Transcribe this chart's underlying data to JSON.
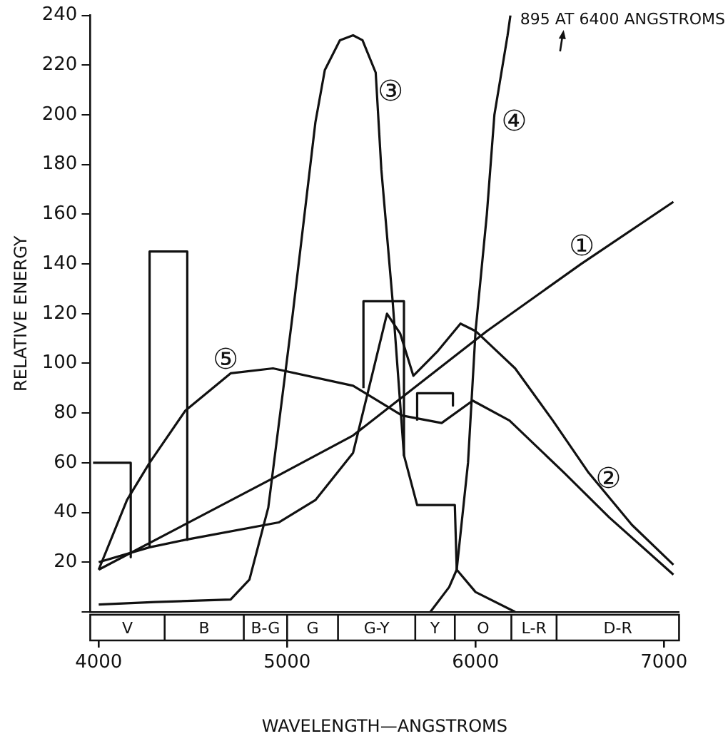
{
  "chart_data": {
    "type": "line",
    "xlabel": "WAVELENGTH—ANGSTROMS",
    "ylabel": "RELATIVE ENERGY",
    "xlim": [
      3955,
      7080
    ],
    "xticks": [
      4000,
      5000,
      6000,
      7000
    ],
    "ylim": [
      0,
      240
    ],
    "yticks": [
      {
        "value": 0,
        "label": null
      },
      20,
      40,
      60,
      80,
      100,
      120,
      140,
      160,
      180,
      200,
      220,
      240
    ],
    "grid": false,
    "legend": false,
    "series": [
      {
        "name": "①",
        "color": "#111111",
        "x": [
          4000,
          4955,
          5350,
          6060,
          6560,
          7050
        ],
        "values": [
          17,
          55,
          71,
          113,
          140,
          165
        ]
      },
      {
        "name": "②",
        "color": "#111111",
        "x": [
          4000,
          4270,
          4460,
          4955,
          5150,
          5350,
          5450,
          5530,
          5600,
          5670,
          5800,
          5920,
          6000,
          6210,
          6410,
          6600,
          6830,
          7050
        ],
        "values": [
          20,
          26,
          29,
          36,
          45,
          64,
          95,
          120,
          112,
          95,
          105,
          116,
          113,
          98,
          77,
          56,
          35,
          19
        ]
      },
      {
        "name": "③",
        "color": "#111111",
        "x": [
          4000,
          4300,
          4700,
          4800,
          4900,
          5030,
          5150,
          5200,
          5280,
          5350,
          5400,
          5470,
          5500,
          5560,
          5620,
          5690,
          5890,
          5900,
          6000,
          6210
        ],
        "values": [
          3,
          4,
          5,
          13,
          42,
          120,
          197,
          218,
          230,
          232,
          230,
          217,
          178,
          125,
          63,
          43,
          43,
          17,
          8,
          0
        ]
      },
      {
        "name": "④",
        "color": "#111111",
        "x": [
          5760,
          5860,
          5900,
          5960,
          6000,
          6060,
          6100,
          6170,
          6185
        ],
        "values": [
          0,
          10,
          17,
          60,
          113,
          160,
          200,
          232,
          240
        ]
      },
      {
        "name": "⑤",
        "color": "#111111",
        "x": [
          4000,
          4150,
          4270,
          4460,
          4700,
          4925,
          5350,
          5610,
          5820,
          5985,
          6180,
          6470,
          6710,
          7050
        ],
        "values": [
          17,
          45,
          60,
          81,
          96,
          98,
          91,
          79,
          76,
          85,
          77,
          56,
          38,
          15
        ]
      },
      {
        "color": "#111111",
        "x": [
          3970,
          4170,
          4170
        ],
        "values": [
          60,
          60,
          22
        ]
      },
      {
        "color": "#111111",
        "x": [
          4270,
          4270,
          4470,
          4470
        ],
        "values": [
          26,
          145,
          145,
          29
        ]
      },
      {
        "color": "#111111",
        "x": [
          5405,
          5405,
          5620,
          5620
        ],
        "values": [
          90,
          125,
          125,
          63
        ]
      },
      {
        "color": "#111111",
        "x": [
          5690,
          5690,
          5880,
          5880
        ],
        "values": [
          77,
          88,
          88,
          83
        ]
      }
    ],
    "annotations": [
      "895 AT 6400 ANGSTROMS",
      "V",
      "B",
      "B-G",
      "G",
      "G-Y",
      "Y",
      "O",
      "L-R",
      "D-R"
    ]
  }
}
